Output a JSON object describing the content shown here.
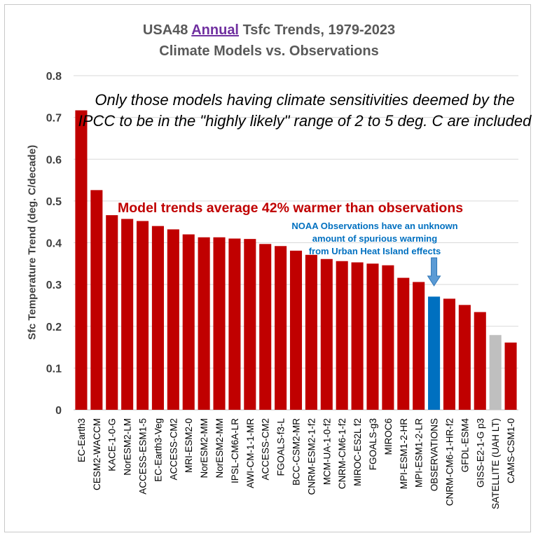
{
  "title": {
    "line1_prefix": "USA48",
    "line1_highlight": "Annual",
    "line1_suffix": "Tsfc Trends, 1979-2023",
    "line2": "Climate Models vs. Observations"
  },
  "annotations": {
    "sensitivity_note": "Only those models having climate sensitivities deemed by the IPCC to be in the \"highly likely\" range of 2 to 5 deg. C are included",
    "average_note": "Model trends average 42% warmer than observations",
    "noaa_note_line1": "NOAA Observations have an unknown",
    "noaa_note_line2": "amount of spurious warming",
    "noaa_note_line3": "from Urban Heat Island effects"
  },
  "colors": {
    "model": "#c00000",
    "observations": "#0070c0",
    "satellite": "#bfbfbf",
    "arrow": "#5b9bd5",
    "title": "#595959",
    "title_highlight": "#7030a0"
  },
  "chart_data": {
    "type": "bar",
    "title": "USA48 Annual Tsfc Trends, 1979-2023 Climate Models vs. Observations",
    "ylabel": "Sfc Temperature Trend (deg. C/decade)",
    "xlabel": "",
    "ylim": [
      0,
      0.8
    ],
    "yticks": [
      "0",
      "0.1",
      "0.2",
      "0.3",
      "0.4",
      "0.5",
      "0.6",
      "0.7",
      "0.8"
    ],
    "grid": true,
    "categories": [
      "EC-Earth3",
      "CESM2-WACCM",
      "KACE-1-0-G",
      "NorESM2-LM",
      "ACCESS-ESM1-5",
      "EC-Earth3-Veg",
      "ACCESS-CM2",
      "MRI-ESM2-0",
      "NorESM2-MM",
      "NorESM2-MM",
      "IPSL-CM6A-LR",
      "AWI-CM-1-1-MR",
      "ACCESS-CM2",
      "FGOALS-f3-L",
      "BCC-CSM2-MR",
      "CNRM-ESM2-1-f2",
      "MCM-UA-1-0-f2",
      "CNRM-CM6-1-f2",
      "MIROC-ES2L f2",
      "FGOALS-g3",
      "MIROC6",
      "MPI-ESM1-2-HR",
      "MPI-ESM1-2-LR",
      "OBSERVATIONS",
      "CNRM-CM6-1-HR-f2",
      "GFDL-ESM4",
      "GISS-E2-1-G p3",
      "SATELLITE (UAH LT)",
      "CAMS-CSM1-0"
    ],
    "values": [
      0.717,
      0.526,
      0.466,
      0.457,
      0.452,
      0.44,
      0.432,
      0.42,
      0.413,
      0.413,
      0.41,
      0.409,
      0.397,
      0.392,
      0.381,
      0.371,
      0.361,
      0.356,
      0.353,
      0.35,
      0.346,
      0.316,
      0.306,
      0.271,
      0.266,
      0.251,
      0.234,
      0.179,
      0.161
    ],
    "kinds": [
      "model",
      "model",
      "model",
      "model",
      "model",
      "model",
      "model",
      "model",
      "model",
      "model",
      "model",
      "model",
      "model",
      "model",
      "model",
      "model",
      "model",
      "model",
      "model",
      "model",
      "model",
      "model",
      "model",
      "observations",
      "model",
      "model",
      "model",
      "satellite",
      "model"
    ]
  }
}
